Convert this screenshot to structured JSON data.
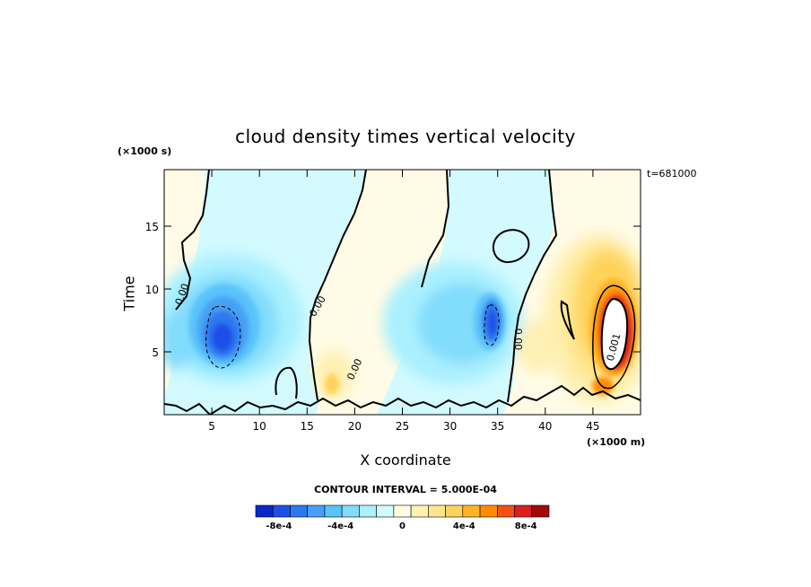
{
  "chart_data": {
    "type": "heatmap",
    "title": "cloud density times vertical velocity",
    "xlabel": "X coordinate",
    "ylabel": "Time",
    "x_unit": "(×1000 m)",
    "y_unit": "(×1000 s)",
    "time_stamp": "t=681000",
    "contour_interval_text": "CONTOUR INTERVAL = 5.000E-04",
    "xlim": [
      0,
      50
    ],
    "ylim": [
      0,
      19.5
    ],
    "x_ticks": [
      5,
      10,
      15,
      20,
      25,
      30,
      35,
      40,
      45
    ],
    "y_ticks": [
      5,
      10,
      15
    ],
    "colorbar": {
      "colors": [
        "#0a28c8",
        "#1e50e6",
        "#2d78f0",
        "#46a0f5",
        "#5ac3fa",
        "#82dcfc",
        "#aaf0ff",
        "#d2faff",
        "#fffbe6",
        "#fff0b4",
        "#ffe68c",
        "#ffd25a",
        "#ffb428",
        "#ff8c00",
        "#f55014",
        "#dc1e1e",
        "#a00a0a"
      ],
      "tick_labels": [
        "-8e-4",
        "-4e-4",
        "0",
        "4e-4",
        "8e-4"
      ],
      "tick_values": [
        -0.0008,
        -0.0004,
        0,
        0.0004,
        0.0008
      ],
      "range": [
        -0.00095,
        0.00095
      ]
    },
    "features": [
      {
        "x": 6,
        "y": 6.2,
        "value": -0.00095,
        "note": "strong negative core"
      },
      {
        "x": 35,
        "y": 7,
        "value": -0.0008,
        "note": "negative core"
      },
      {
        "x": 46.5,
        "y": 6,
        "value": 0.0012,
        "note": "strong positive core, exceeds colour range"
      },
      {
        "x": 17.5,
        "y": 2.5,
        "value": 0.0003,
        "note": "weak positive"
      }
    ],
    "contour_labels": [
      {
        "text": "0.00",
        "x": 2.2,
        "y": 9.5,
        "rotate": -70
      },
      {
        "text": "0.00",
        "x": 16.4,
        "y": 8.5,
        "rotate": -60
      },
      {
        "text": "0.00",
        "x": 20.3,
        "y": 3.5,
        "rotate": -65
      },
      {
        "text": "0.00",
        "x": 36.8,
        "y": 6,
        "rotate": 90
      },
      {
        "text": "0.001",
        "x": 47.5,
        "y": 5.3,
        "rotate": -75
      }
    ]
  }
}
